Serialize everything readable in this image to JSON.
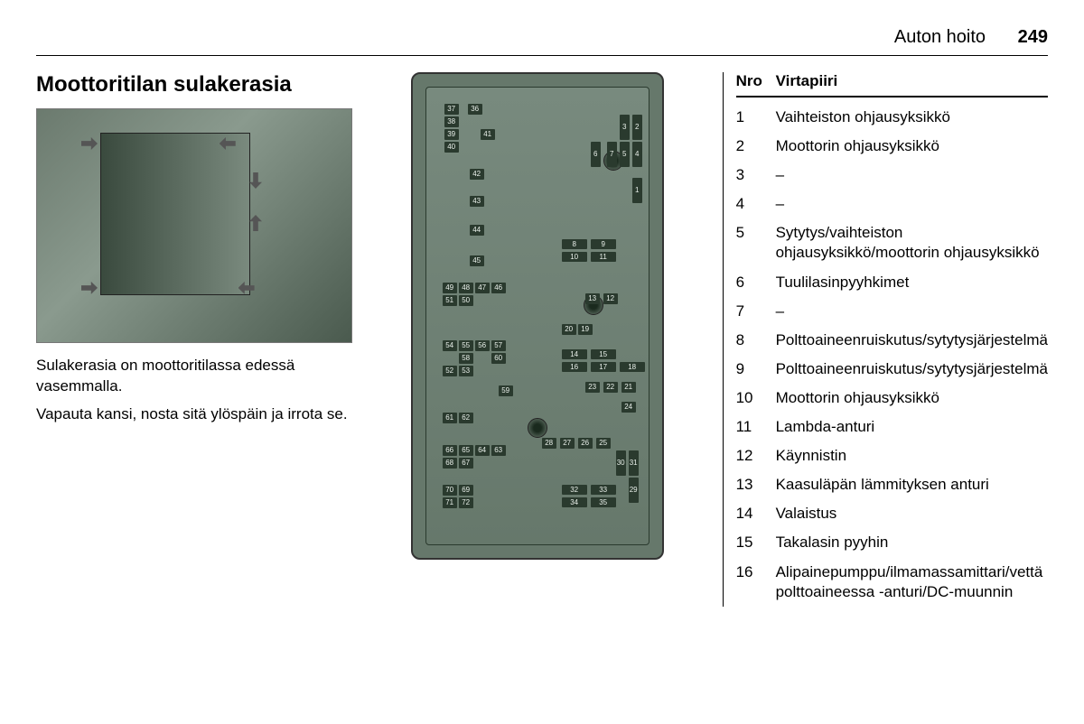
{
  "header": {
    "chapter": "Auton hoito",
    "page": "249"
  },
  "left": {
    "heading": "Moottoritilan sulakerasia",
    "p1": "Sulakerasia on moottoritilassa edessä vasemmalla.",
    "p2": "Vapauta kansi, nosta sitä ylöspäin ja irrota se."
  },
  "fuse_numbers": [
    "37",
    "36",
    "38",
    "39",
    "40",
    "41",
    "42",
    "43",
    "44",
    "45",
    "49",
    "48",
    "47",
    "46",
    "51",
    "50",
    "54",
    "55",
    "56",
    "57",
    "58",
    "60",
    "59",
    "61",
    "62",
    "66",
    "65",
    "64",
    "63",
    "68",
    "67",
    "70",
    "69",
    "71",
    "72",
    "52",
    "53",
    "1",
    "2",
    "3",
    "4",
    "5",
    "6",
    "7",
    "8",
    "9",
    "10",
    "11",
    "12",
    "13",
    "14",
    "15",
    "16",
    "17",
    "18",
    "19",
    "20",
    "21",
    "22",
    "23",
    "24",
    "25",
    "26",
    "27",
    "28",
    "29",
    "30",
    "31",
    "32",
    "33",
    "34",
    "35"
  ],
  "table": {
    "h1": "Nro",
    "h2": "Virtapiiri",
    "rows": [
      {
        "n": "1",
        "t": "Vaihteiston ohjausyksikkö"
      },
      {
        "n": "2",
        "t": "Moottorin ohjausyksikkö"
      },
      {
        "n": "3",
        "t": "–"
      },
      {
        "n": "4",
        "t": "–"
      },
      {
        "n": "5",
        "t": "Sytytys/vaihteiston ohjausyksikkö/moottorin ohjausyksikkö"
      },
      {
        "n": "6",
        "t": "Tuulilasinpyyhkimet"
      },
      {
        "n": "7",
        "t": "–"
      },
      {
        "n": "8",
        "t": "Polttoaineenruiskutus/sytytysjärjestelmä"
      },
      {
        "n": "9",
        "t": "Polttoaineenruiskutus/sytytysjärjestelmä"
      },
      {
        "n": "10",
        "t": "Moottorin ohjausyksikkö"
      },
      {
        "n": "11",
        "t": "Lambda-anturi"
      },
      {
        "n": "12",
        "t": "Käynnistin"
      },
      {
        "n": "13",
        "t": "Kaasuläpän lämmityksen anturi"
      },
      {
        "n": "14",
        "t": "Valaistus"
      },
      {
        "n": "15",
        "t": "Takalasin pyyhin"
      },
      {
        "n": "16",
        "t": "Alipainepumppu/ilmamassamittari/vettä polttoaineessa -anturi/DC-muunnin"
      }
    ]
  }
}
